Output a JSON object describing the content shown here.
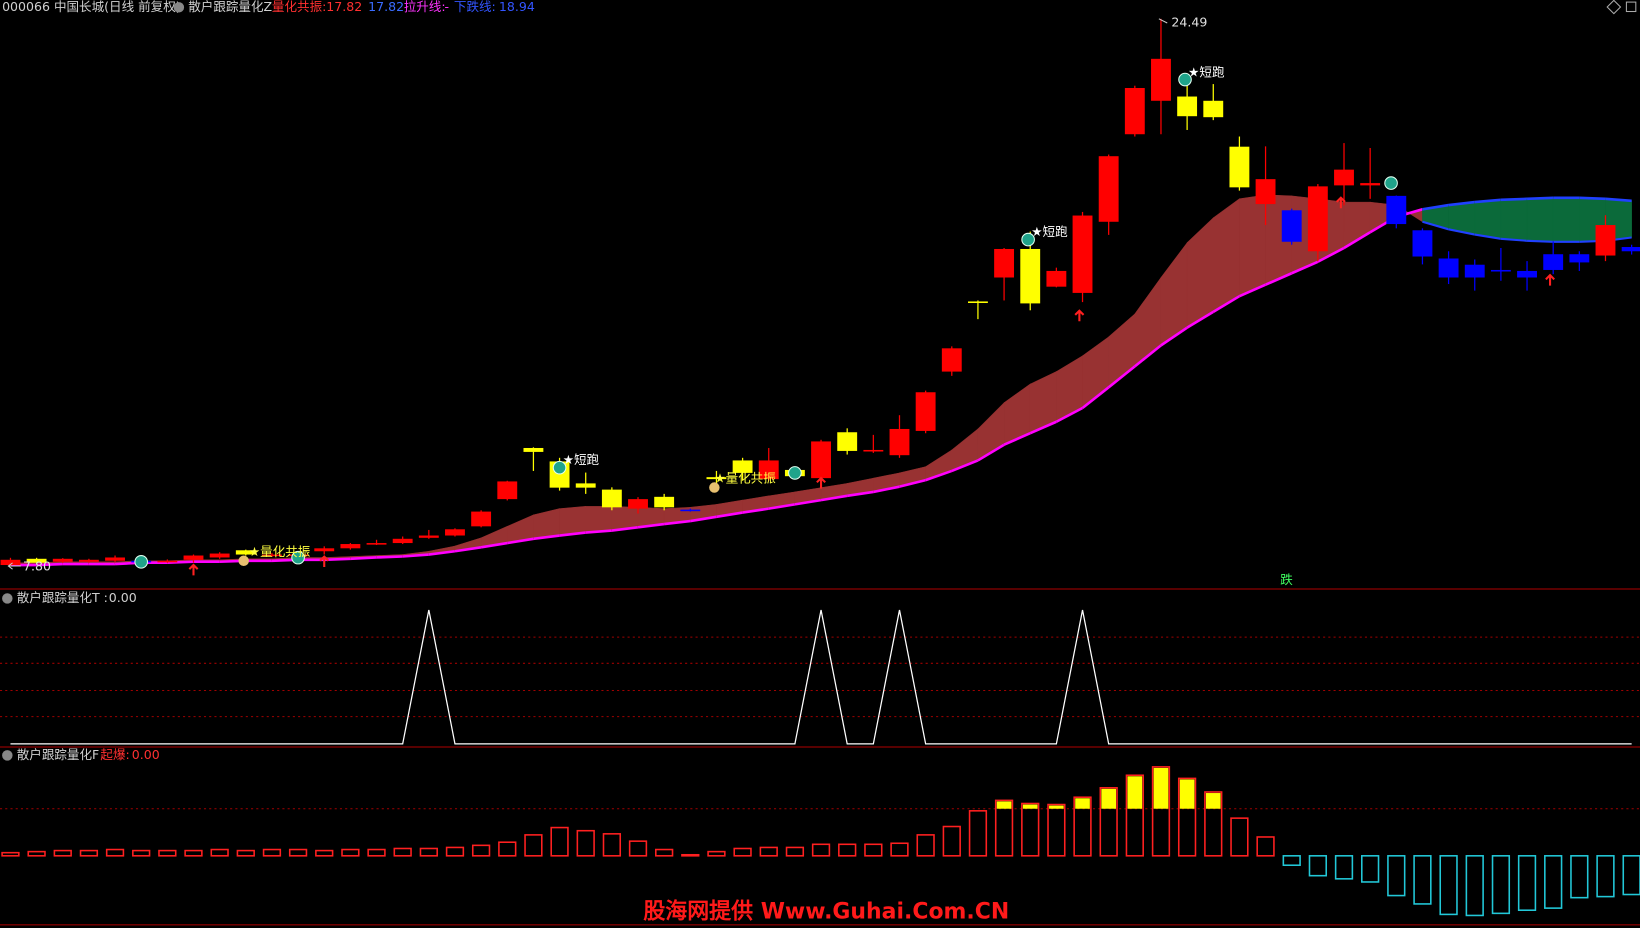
{
  "header": {
    "symbol": "000066 中国长城(日线 前复权)"
  },
  "watermark": "股海网提供 Www.Guhai.Com.CN",
  "chart_data": [
    {
      "type": "candlestick",
      "title": "散户跟踪量化Z",
      "legend": [
        {
          "label": "量化共振:",
          "value": 17.82,
          "color": "#ff3030"
        },
        {
          "value": 17.82,
          "color": "#3a6cff"
        },
        {
          "label": "拉升线:",
          "value": "-",
          "color": "#ff33ff"
        },
        {
          "label": "下跌线:",
          "value": 18.94,
          "color": "#3355ff"
        }
      ],
      "max_label": 24.49,
      "min_label": {
        "value": 7.8,
        "label": "7.80"
      },
      "signal_texts": [
        "★量化共振",
        "★短跑",
        "★量化共振",
        "★短跑",
        "★短跑",
        "跌"
      ],
      "open": [
        7.83,
        7.9,
        7.93,
        7.93,
        7.96,
        7.96,
        7.93,
        7.99,
        8.06,
        8.15,
        8.12,
        8.12,
        8.25,
        8.34,
        8.47,
        8.5,
        8.66,
        8.73,
        9.01,
        9.84,
        11.28,
        10.19,
        10.19,
        9.59,
        9.55,
        9.59,
        9.49,
        10.45,
        10.64,
        10.45,
        10.54,
        10.48,
        11.31,
        11.31,
        11.18,
        11.92,
        13.73,
        15.87,
        16.6,
        15.81,
        16.32,
        16.13,
        18.3,
        20.97,
        21.99,
        21.52,
        21.49,
        19.35,
        18.84,
        18.65,
        17.4,
        19.41,
        19.41,
        19.09,
        18.04,
        17.18,
        16.99,
        16.83,
        16.8,
        17.31,
        17.31,
        17.27,
        17.53
      ],
      "close": [
        7.99,
        8.02,
        8.02,
        7.99,
        8.06,
        7.93,
        7.96,
        8.12,
        8.18,
        8.28,
        8.15,
        8.15,
        8.34,
        8.47,
        8.5,
        8.63,
        8.73,
        8.92,
        9.46,
        10.38,
        11.4,
        10.99,
        10.32,
        10.13,
        9.84,
        9.91,
        9.52,
        10.51,
        11.02,
        11.02,
        10.73,
        11.6,
        11.88,
        11.34,
        11.98,
        13.1,
        14.44,
        15.87,
        17.47,
        17.47,
        16.8,
        18.49,
        20.3,
        22.38,
        23.27,
        22.12,
        21.99,
        20.59,
        19.6,
        17.69,
        19.38,
        19.89,
        19.48,
        18.23,
        17.24,
        16.6,
        16.6,
        16.83,
        16.6,
        16.83,
        17.06,
        18.2,
        17.4
      ],
      "high": [
        8.05,
        8.05,
        8.04,
        8.02,
        8.12,
        8.0,
        8.0,
        8.15,
        8.22,
        8.3,
        8.2,
        8.2,
        8.4,
        8.5,
        8.6,
        8.7,
        8.9,
        8.95,
        9.5,
        10.4,
        11.42,
        11.1,
        10.65,
        10.2,
        9.9,
        10.0,
        9.55,
        10.7,
        11.1,
        11.4,
        10.8,
        11.65,
        12.0,
        11.8,
        12.4,
        13.15,
        14.5,
        15.9,
        17.5,
        18.0,
        16.9,
        18.6,
        20.35,
        22.45,
        24.49,
        22.7,
        22.5,
        20.9,
        20.6,
        18.7,
        19.45,
        20.7,
        20.55,
        19.1,
        18.1,
        17.4,
        17.15,
        17.5,
        17.1,
        17.7,
        17.4,
        18.5,
        17.6
      ],
      "low": [
        7.8,
        7.88,
        7.9,
        7.9,
        7.93,
        7.88,
        7.9,
        7.9,
        8.02,
        8.12,
        8.08,
        8.06,
        8.15,
        8.3,
        8.44,
        8.47,
        8.63,
        8.7,
        8.98,
        9.8,
        10.7,
        10.1,
        10.0,
        9.5,
        9.4,
        9.5,
        9.46,
        10.3,
        10.4,
        10.4,
        10.5,
        10.4,
        11.2,
        11.25,
        11.1,
        11.85,
        13.6,
        15.33,
        15.9,
        15.6,
        16.3,
        15.85,
        17.9,
        20.9,
        20.97,
        21.1,
        21.4,
        19.25,
        18.2,
        17.6,
        17.1,
        18.8,
        19.0,
        18.1,
        17.0,
        16.4,
        16.2,
        16.5,
        16.2,
        16.7,
        16.8,
        17.1,
        17.3
      ],
      "candle_colors": [
        "#ff0000",
        "#ffff00",
        "#ff0000",
        "#ff0000",
        "#ff0000",
        "#0000ff",
        "#ff0000",
        "#ff0000",
        "#ff0000",
        "#ffff00",
        "#ff0000",
        "#ff0000",
        "#ff0000",
        "#ff0000",
        "#ff0000",
        "#ff0000",
        "#ff0000",
        "#ff0000",
        "#ff0000",
        "#ff0000",
        "#ffff00",
        "#ffff00",
        "#ffff00",
        "#ffff00",
        "#ff0000",
        "#ffff00",
        "#0000ff",
        "#ffff00",
        "#ffff00",
        "#ff0000",
        "#ffff00",
        "#ff0000",
        "#ffff00",
        "#ff0000",
        "#ff0000",
        "#ff0000",
        "#ff0000",
        "#ffff00",
        "#ff0000",
        "#ffff00",
        "#ff0000",
        "#ff0000",
        "#ff0000",
        "#ff0000",
        "#ff0000",
        "#ffff00",
        "#ffff00",
        "#ffff00",
        "#ff0000",
        "#0000ff",
        "#ff0000",
        "#ff0000",
        "#ff0000",
        "#0000ff",
        "#0000ff",
        "#0000ff",
        "#0000ff",
        "#0000ff",
        "#0000ff",
        "#0000ff",
        "#0000ff",
        "#ff0000",
        "#0000ff"
      ],
      "series": [
        {
          "color": "#2040ff",
          "values": [
            7.9,
            7.9,
            7.93,
            7.93,
            7.93,
            7.96,
            7.96,
            7.99,
            7.99,
            8.02,
            8.02,
            8.06,
            8.06,
            8.09,
            8.12,
            8.15,
            8.25,
            8.41,
            8.66,
            9.01,
            9.36,
            9.55,
            9.62,
            9.62,
            9.59,
            9.55,
            9.59,
            9.68,
            9.81,
            9.94,
            10.06,
            10.19,
            10.32,
            10.48,
            10.64,
            10.83,
            11.34,
            11.98,
            12.78,
            13.35,
            13.73,
            14.21,
            14.79,
            15.49,
            16.6,
            17.66,
            18.42,
            19.0,
            19.12,
            19.09,
            19.0,
            18.9,
            18.9,
            18.81,
            18.3,
            18.07,
            17.91,
            17.78,
            17.72,
            17.69,
            17.69,
            17.72,
            17.82
          ]
        },
        {
          "color": "#ff00ff",
          "values": [
            7.83,
            7.83,
            7.86,
            7.86,
            7.86,
            7.9,
            7.9,
            7.93,
            7.93,
            7.96,
            7.96,
            7.99,
            7.99,
            8.02,
            8.06,
            8.09,
            8.15,
            8.25,
            8.37,
            8.5,
            8.63,
            8.73,
            8.82,
            8.88,
            8.98,
            9.08,
            9.17,
            9.3,
            9.43,
            9.55,
            9.68,
            9.81,
            9.94,
            10.06,
            10.22,
            10.42,
            10.7,
            11.02,
            11.5,
            11.85,
            12.2,
            12.62,
            13.25,
            13.89,
            14.53,
            15.07,
            15.55,
            16.03,
            16.38,
            16.73,
            17.08,
            17.5,
            17.98,
            18.45,
            18.68,
            18.81,
            18.9,
            18.97,
            19.0,
            19.03,
            19.03,
            19.0,
            18.94
          ]
        }
      ],
      "band_colors": [
        "#983232",
        "#0b6a3a"
      ],
      "cloud_edge_color": "#2040ff"
    },
    {
      "type": "line",
      "title": "散户跟踪量化T :",
      "value": {
        "value": 0,
        "label": "0.00"
      },
      "color": "#ffffff",
      "values": [
        0,
        0,
        0,
        0,
        0,
        0,
        0,
        0,
        0,
        0,
        0,
        0,
        0,
        0,
        0,
        0,
        1,
        0,
        0,
        0,
        0,
        0,
        0,
        0,
        0,
        0,
        0,
        0,
        0,
        0,
        0,
        1,
        0,
        0,
        1,
        0,
        0,
        0,
        0,
        0,
        0,
        1,
        0,
        0,
        0,
        0,
        0,
        0,
        0,
        0,
        0,
        0,
        0,
        0,
        0,
        0,
        0,
        0,
        0,
        0,
        0,
        0,
        0
      ]
    },
    {
      "type": "bar",
      "title": "散户跟踪量化F",
      "label": "起爆:",
      "value": {
        "value": 0,
        "label": "0.00"
      },
      "values": [
        3,
        4,
        5,
        5,
        6,
        5,
        5,
        5,
        6,
        5,
        6,
        6,
        5,
        6,
        6,
        7,
        7,
        8,
        10,
        13,
        20,
        27,
        24,
        21,
        14,
        6,
        1,
        4,
        7,
        8,
        8,
        11,
        11,
        11,
        12,
        20,
        28,
        43,
        53,
        50,
        49,
        56,
        65,
        77,
        85,
        74,
        61,
        36,
        18,
        -9,
        -19,
        -22,
        -25,
        -38,
        -46,
        -56,
        -57,
        -55,
        -52,
        -50,
        -40,
        -39,
        -37
      ],
      "threshold": 45,
      "color": "#ff2020",
      "highlight_color": "#ffff00",
      "negative_color": "#22c8d8"
    }
  ]
}
